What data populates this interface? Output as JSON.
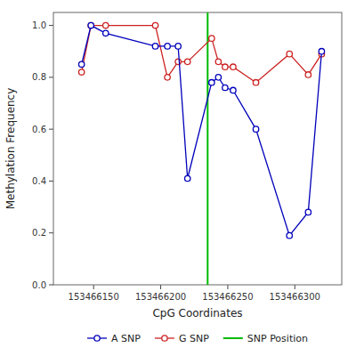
{
  "chart_data": {
    "type": "line",
    "xlabel": "CpG Coordinates",
    "ylabel": "Methylation Frequency",
    "x": [
      153466141,
      153466148,
      153466159,
      153466196,
      153466205,
      153466213,
      153466220,
      153466238,
      153466243,
      153466248,
      153466254,
      153466271,
      153466296,
      153466310,
      153466320
    ],
    "series": [
      {
        "name": "A SNP",
        "color": "#0000BB",
        "marker": "circle",
        "values": [
          0.85,
          1.0,
          0.97,
          0.92,
          0.92,
          0.92,
          0.41,
          0.78,
          0.8,
          0.76,
          0.75,
          0.6,
          0.19,
          0.28,
          0.9
        ]
      },
      {
        "name": "G SNP",
        "color": "#CC2222",
        "marker": "circle",
        "values": [
          0.82,
          1.0,
          1.0,
          1.0,
          0.8,
          0.86,
          0.86,
          0.95,
          0.86,
          0.84,
          0.84,
          0.78,
          0.89,
          0.81,
          0.89
        ]
      }
    ],
    "vlines": [
      {
        "name": "SNP Position",
        "x": 153466235,
        "color": "#00BB00"
      }
    ],
    "xlim": [
      153466120,
      153466335
    ],
    "xticks": [
      153466150,
      153466200,
      153466250,
      153466300
    ],
    "ylim": [
      0.0,
      1.05
    ],
    "yticks": [
      {
        "value": 0.0,
        "label": "0.0"
      },
      0.2,
      0.4,
      0.6,
      0.8,
      {
        "value": 1.0,
        "label": "1.0"
      }
    ],
    "grid": false,
    "legend": "bottom"
  }
}
